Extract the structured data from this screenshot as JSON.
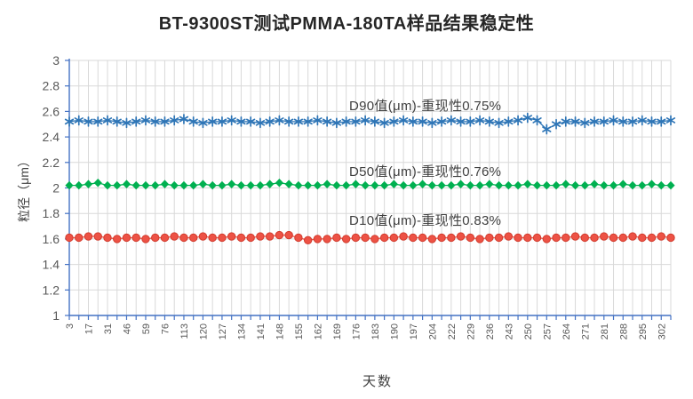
{
  "title": "BT-9300ST测试PMMA-180TA样品结果稳定性",
  "chart_data": {
    "type": "line",
    "title": "BT-9300ST测试PMMA-180TA样品结果稳定性",
    "xlabel": "天数",
    "ylabel": "粒径（μm）",
    "ylim": [
      1,
      3
    ],
    "grid": true,
    "legend_position": "inline-annotations",
    "axis_color": "#4472C4",
    "grid_color": "#D9D9D9",
    "tick_label_color": "#595959",
    "ytick_labels": [
      "3",
      "2.8",
      "2.6",
      "2.4",
      "2.2",
      "2",
      "1.8",
      "1.6",
      "1.4",
      "1.2",
      "1"
    ],
    "ytick_values": [
      3,
      2.8,
      2.6,
      2.4,
      2.2,
      2,
      1.8,
      1.6,
      1.4,
      1.2,
      1
    ],
    "x_tick_labels": [
      "3",
      "17",
      "31",
      "46",
      "59",
      "76",
      "113",
      "120",
      "127",
      "134",
      "141",
      "148",
      "155",
      "162",
      "169",
      "176",
      "183",
      "190",
      "197",
      "204",
      "222",
      "229",
      "236",
      "243",
      "250",
      "257",
      "264",
      "271",
      "281",
      "288",
      "295",
      "302"
    ],
    "series": [
      {
        "name": "D90",
        "annotation": "D90值(μm)-重现性0.75%",
        "color": "#2E75B6",
        "marker": "asterisk",
        "values": [
          2.52,
          2.53,
          2.52,
          2.52,
          2.53,
          2.52,
          2.51,
          2.52,
          2.53,
          2.52,
          2.52,
          2.53,
          2.54,
          2.52,
          2.51,
          2.52,
          2.52,
          2.53,
          2.52,
          2.52,
          2.51,
          2.52,
          2.53,
          2.52,
          2.52,
          2.52,
          2.53,
          2.52,
          2.51,
          2.52,
          2.52,
          2.53,
          2.52,
          2.51,
          2.52,
          2.53,
          2.52,
          2.52,
          2.51,
          2.52,
          2.53,
          2.52,
          2.52,
          2.53,
          2.52,
          2.51,
          2.52,
          2.53,
          2.55,
          2.53,
          2.46,
          2.5,
          2.52,
          2.52,
          2.51,
          2.52,
          2.52,
          2.53,
          2.52,
          2.52,
          2.53,
          2.52,
          2.52,
          2.53
        ]
      },
      {
        "name": "D50",
        "annotation": "D50值(μm)-重现性0.76%",
        "color": "#00B050",
        "marker": "diamond",
        "values": [
          2.02,
          2.02,
          2.03,
          2.04,
          2.02,
          2.02,
          2.03,
          2.02,
          2.02,
          2.02,
          2.03,
          2.02,
          2.02,
          2.02,
          2.03,
          2.02,
          2.02,
          2.03,
          2.02,
          2.02,
          2.02,
          2.03,
          2.04,
          2.03,
          2.02,
          2.02,
          2.02,
          2.03,
          2.02,
          2.02,
          2.03,
          2.02,
          2.02,
          2.02,
          2.03,
          2.02,
          2.02,
          2.03,
          2.02,
          2.02,
          2.02,
          2.03,
          2.02,
          2.02,
          2.03,
          2.02,
          2.02,
          2.02,
          2.03,
          2.02,
          2.02,
          2.02,
          2.03,
          2.02,
          2.02,
          2.03,
          2.02,
          2.02,
          2.03,
          2.02,
          2.02,
          2.03,
          2.02,
          2.02
        ]
      },
      {
        "name": "D10",
        "annotation": "D10值(μm)-重现性0.83%",
        "color": "#ED5245",
        "marker": "circle",
        "marker_stroke": "#D23C2E",
        "values": [
          1.61,
          1.61,
          1.62,
          1.62,
          1.61,
          1.6,
          1.61,
          1.61,
          1.6,
          1.61,
          1.61,
          1.62,
          1.61,
          1.61,
          1.62,
          1.61,
          1.61,
          1.62,
          1.61,
          1.61,
          1.62,
          1.62,
          1.63,
          1.63,
          1.61,
          1.59,
          1.6,
          1.6,
          1.61,
          1.6,
          1.61,
          1.61,
          1.6,
          1.61,
          1.61,
          1.62,
          1.61,
          1.61,
          1.6,
          1.61,
          1.61,
          1.62,
          1.61,
          1.6,
          1.61,
          1.61,
          1.62,
          1.61,
          1.61,
          1.61,
          1.6,
          1.61,
          1.61,
          1.62,
          1.61,
          1.61,
          1.62,
          1.61,
          1.61,
          1.62,
          1.61,
          1.61,
          1.62,
          1.61
        ]
      }
    ]
  }
}
